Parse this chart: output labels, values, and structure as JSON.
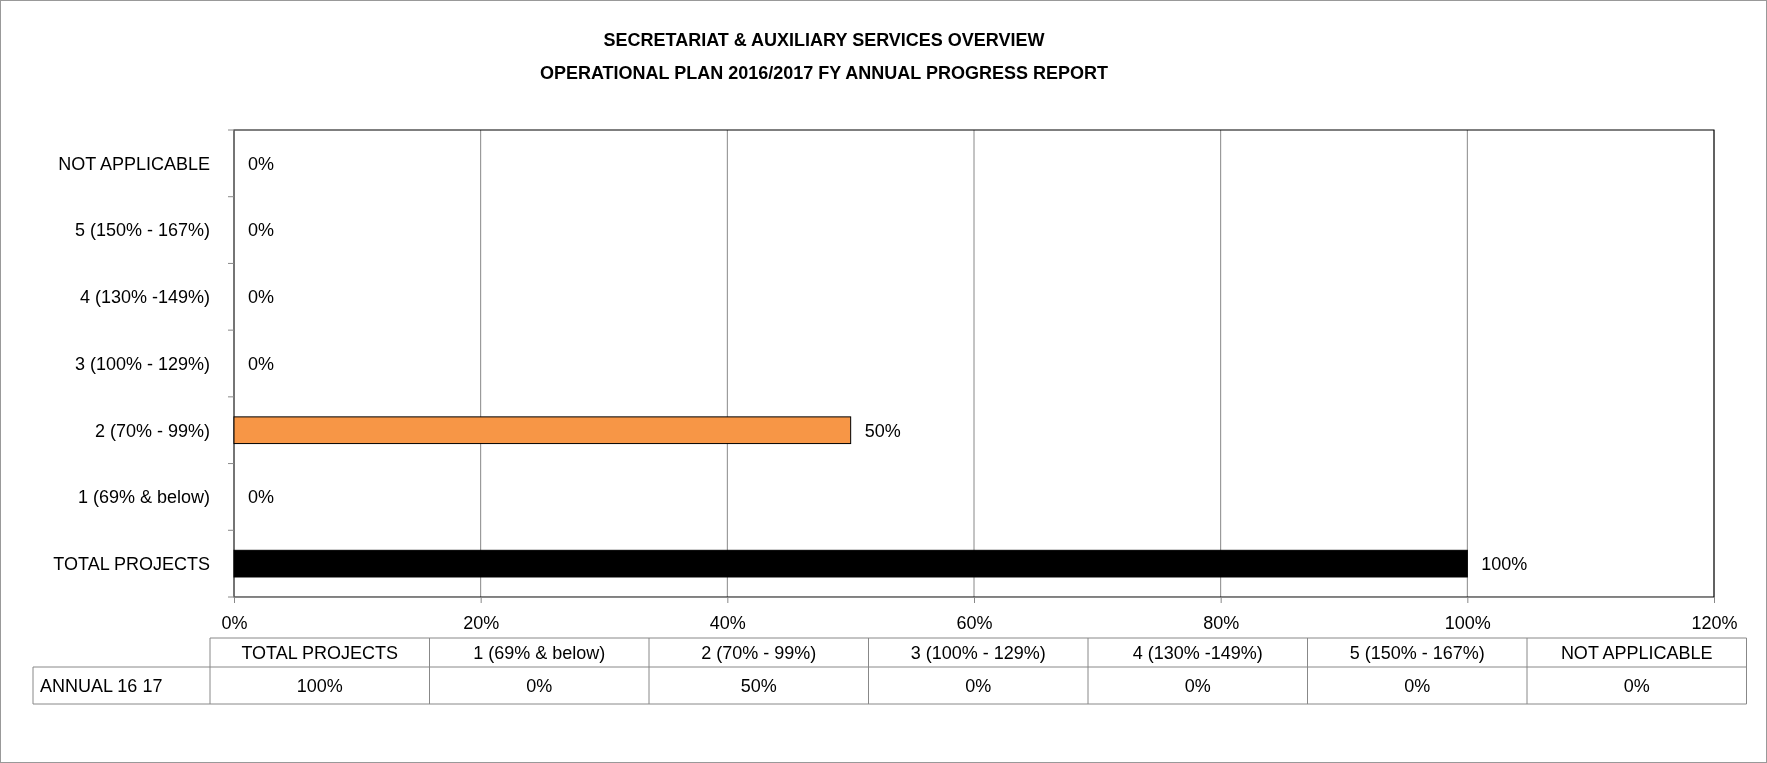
{
  "chart_data": {
    "type": "bar",
    "orientation": "horizontal",
    "title": "SECRETARIAT & AUXILIARY SERVICES OVERVIEW",
    "subtitle": "OPERATIONAL PLAN 2016/2017 FY ANNUAL PROGRESS REPORT",
    "categories": [
      "NOT APPLICABLE",
      "5 (150% - 167%)",
      "4 (130% -149%)",
      "3 (100% - 129%)",
      "2 (70% - 99%)",
      "1 (69% & below)",
      "TOTAL PROJECTS"
    ],
    "series": [
      {
        "name": "ANNUAL 16 17",
        "values": [
          0,
          0,
          0,
          0,
          50,
          0,
          100
        ],
        "value_labels": [
          "0%",
          "0%",
          "0%",
          "0%",
          "50%",
          "0%",
          "100%"
        ],
        "colors": [
          "#f79646",
          "#f79646",
          "#f79646",
          "#f79646",
          "#f79646",
          "#f79646",
          "#000000"
        ]
      }
    ],
    "xlim": [
      0,
      120
    ],
    "xticks": [
      {
        "value": 0,
        "label": "0%"
      },
      {
        "value": 20,
        "label": "20%"
      },
      {
        "value": 40,
        "label": "40%"
      },
      {
        "value": 60,
        "label": "60%"
      },
      {
        "value": 80,
        "label": "80%"
      },
      {
        "value": 100,
        "label": "100%"
      },
      {
        "value": 120,
        "label": "120%"
      }
    ],
    "grid": "x",
    "legend": false
  }
}
